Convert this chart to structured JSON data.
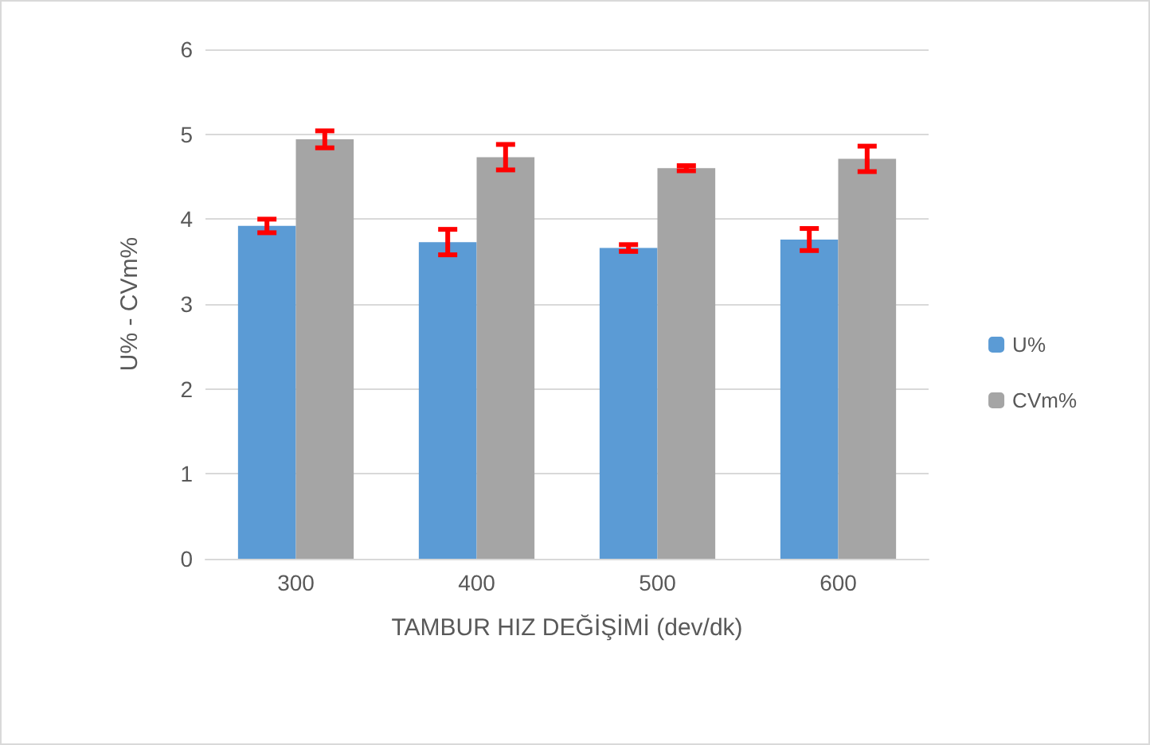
{
  "chart_data": {
    "type": "bar",
    "xlabel": "TAMBUR HIZ DEĞİŞİMİ (dev/dk)",
    "ylabel": "U% - CVm%",
    "categories": [
      "300",
      "400",
      "500",
      "600"
    ],
    "series": [
      {
        "name": "U%",
        "color": "#5b9bd5",
        "values": [
          3.92,
          3.73,
          3.66,
          3.76
        ],
        "errors": [
          0.08,
          0.15,
          0.04,
          0.13
        ]
      },
      {
        "name": "CVm%",
        "color": "#a5a5a5",
        "values": [
          4.94,
          4.73,
          4.6,
          4.71
        ],
        "errors": [
          0.1,
          0.15,
          0.03,
          0.15
        ]
      }
    ],
    "ylim": [
      0,
      6
    ],
    "yticks": [
      0,
      1,
      2,
      3,
      4,
      5,
      6
    ],
    "grid": "y",
    "legend": "right"
  }
}
